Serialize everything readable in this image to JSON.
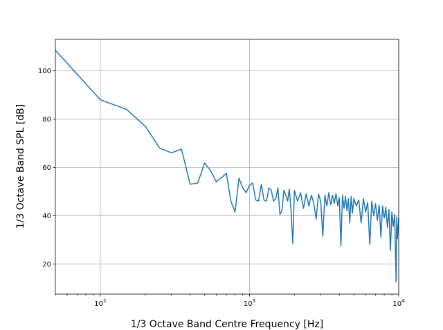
{
  "chart_data": {
    "type": "line",
    "xlabel": "1/3 Octave Band Centre Frequency [Hz]",
    "ylabel": "1/3 Octave Band SPL [dB]",
    "xscale": "log",
    "xlim": [
      50,
      10000
    ],
    "ylim": [
      7.5,
      113
    ],
    "grid": true,
    "line_color": "#1f77b4",
    "x_major_ticks": [
      {
        "value": 100,
        "base": "10",
        "exp": "2"
      },
      {
        "value": 1000,
        "base": "10",
        "exp": "3"
      },
      {
        "value": 10000,
        "base": "10",
        "exp": "4"
      }
    ],
    "y_ticks": [
      {
        "value": 20,
        "label": "20"
      },
      {
        "value": 40,
        "label": "40"
      },
      {
        "value": 60,
        "label": "60"
      },
      {
        "value": 80,
        "label": "80"
      },
      {
        "value": 100,
        "label": "100"
      }
    ],
    "series": [
      {
        "points": [
          [
            50,
            108.5
          ],
          [
            100,
            88
          ],
          [
            150,
            84
          ],
          [
            200,
            77
          ],
          [
            250,
            68
          ],
          [
            300,
            66
          ],
          [
            350,
            67.5
          ],
          [
            400,
            53
          ],
          [
            450,
            53.5
          ],
          [
            500,
            61.8
          ],
          [
            550,
            58.5
          ],
          [
            600,
            54
          ],
          [
            650,
            55.8
          ],
          [
            700,
            57.5
          ],
          [
            750,
            46
          ],
          [
            800,
            41.5
          ],
          [
            850,
            55.5
          ],
          [
            900,
            51.5
          ],
          [
            950,
            49.5
          ],
          [
            1000,
            52.5
          ],
          [
            1050,
            53.5
          ],
          [
            1100,
            46.5
          ],
          [
            1150,
            46
          ],
          [
            1200,
            53
          ],
          [
            1250,
            46.5
          ],
          [
            1300,
            46
          ],
          [
            1350,
            51.5
          ],
          [
            1400,
            50.5
          ],
          [
            1450,
            46
          ],
          [
            1500,
            47
          ],
          [
            1550,
            51.5
          ],
          [
            1600,
            40.5
          ],
          [
            1650,
            42
          ],
          [
            1700,
            50.5
          ],
          [
            1750,
            48.5
          ],
          [
            1800,
            46
          ],
          [
            1850,
            51
          ],
          [
            1900,
            42
          ],
          [
            1950,
            28.5
          ],
          [
            2000,
            50.5
          ],
          [
            2100,
            46
          ],
          [
            2200,
            49.5
          ],
          [
            2300,
            43
          ],
          [
            2400,
            49
          ],
          [
            2500,
            44
          ],
          [
            2600,
            48.5
          ],
          [
            2700,
            45
          ],
          [
            2800,
            38.5
          ],
          [
            2900,
            49
          ],
          [
            3000,
            46
          ],
          [
            3100,
            31.5
          ],
          [
            3200,
            48.5
          ],
          [
            3300,
            44
          ],
          [
            3400,
            49.5
          ],
          [
            3500,
            44.5
          ],
          [
            3600,
            48.5
          ],
          [
            3700,
            45
          ],
          [
            3800,
            49
          ],
          [
            3900,
            44
          ],
          [
            4000,
            47.5
          ],
          [
            4100,
            27.5
          ],
          [
            4200,
            48.5
          ],
          [
            4300,
            43
          ],
          [
            4400,
            48
          ],
          [
            4500,
            42
          ],
          [
            4600,
            47
          ],
          [
            4700,
            37
          ],
          [
            4800,
            48
          ],
          [
            4900,
            41
          ],
          [
            5000,
            47
          ],
          [
            5200,
            44
          ],
          [
            5400,
            46.5
          ],
          [
            5600,
            37
          ],
          [
            5800,
            47
          ],
          [
            6000,
            41.5
          ],
          [
            6200,
            45.5
          ],
          [
            6400,
            28
          ],
          [
            6600,
            46
          ],
          [
            6800,
            40
          ],
          [
            7000,
            45
          ],
          [
            7200,
            38
          ],
          [
            7400,
            44.5
          ],
          [
            7600,
            31
          ],
          [
            7800,
            44
          ],
          [
            8000,
            39
          ],
          [
            8200,
            43.5
          ],
          [
            8400,
            35
          ],
          [
            8600,
            42.5
          ],
          [
            8800,
            25.5
          ],
          [
            9000,
            41.5
          ],
          [
            9200,
            35.5
          ],
          [
            9400,
            40.5
          ],
          [
            9600,
            12.5
          ],
          [
            9700,
            39.5
          ],
          [
            9800,
            30.5
          ],
          [
            10000,
            39
          ]
        ]
      }
    ]
  }
}
